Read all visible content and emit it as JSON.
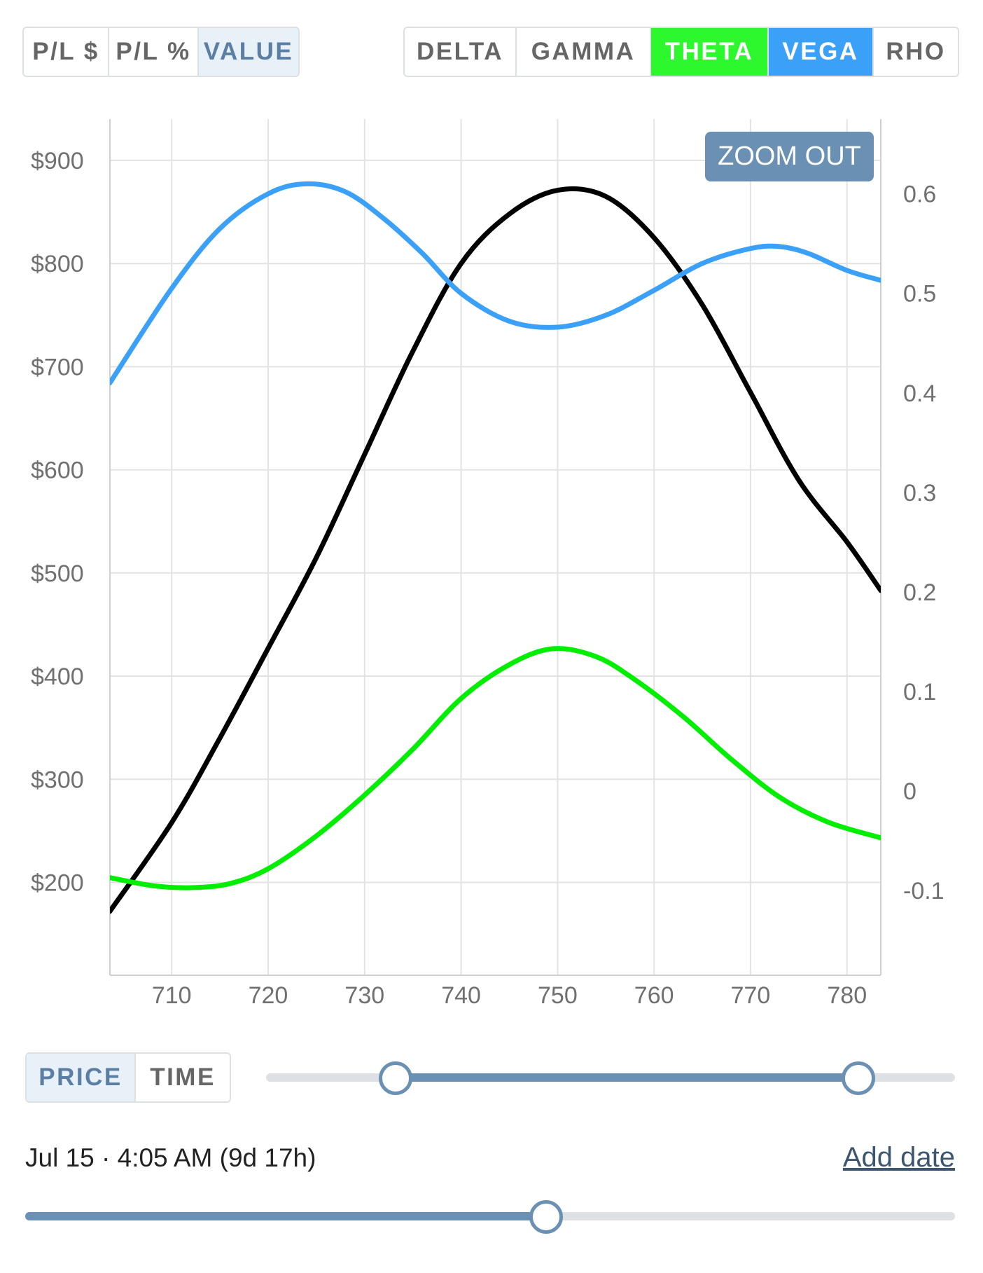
{
  "mode_tabs": [
    {
      "label": "P/L $",
      "active": false
    },
    {
      "label": "P/L %",
      "active": false
    },
    {
      "label": "VALUE",
      "active": true
    }
  ],
  "greek_tabs": [
    {
      "label": "DELTA",
      "active": false,
      "color": ""
    },
    {
      "label": "GAMMA",
      "active": false,
      "color": ""
    },
    {
      "label": "THETA",
      "active": true,
      "color": "#2df72d"
    },
    {
      "label": "VEGA",
      "active": true,
      "color": "#3aa0f8"
    },
    {
      "label": "RHO",
      "active": false,
      "color": ""
    }
  ],
  "zoom_label": "ZOOM OUT",
  "axis_tabs": [
    {
      "label": "PRICE",
      "active": true
    },
    {
      "label": "TIME",
      "active": false
    }
  ],
  "range_slider": {
    "low": 0.188,
    "high": 0.86
  },
  "date_label": "Jul 15 · 4:05 AM (9d 17h)",
  "add_date_label": "Add date",
  "time_slider": {
    "value": 0.56
  },
  "chart_data": {
    "type": "line",
    "x_ticks": [
      710,
      720,
      730,
      740,
      750,
      760,
      770,
      780
    ],
    "xlim": [
      703.6,
      783.5
    ],
    "y_left_ticks": [
      "$200",
      "$300",
      "$400",
      "$500",
      "$600",
      "$700",
      "$800",
      "$900"
    ],
    "y_left_values": [
      200,
      300,
      400,
      500,
      600,
      700,
      800,
      900
    ],
    "ylim_left": [
      110,
      940
    ],
    "y_right_ticks": [
      "-0.1",
      "0",
      "0.1",
      "0.2",
      "0.3",
      "0.4",
      "0.5",
      "0.6"
    ],
    "y_right_values": [
      -0.1,
      0,
      0.1,
      0.2,
      0.3,
      0.4,
      0.5,
      0.6
    ],
    "ylim_right": [
      -0.185,
      0.675
    ],
    "grid": true,
    "series": [
      {
        "color": "#000000",
        "axis": "left",
        "x": [
          703.6,
          710,
          715,
          720,
          725,
          730,
          735,
          740,
          745,
          750,
          755,
          760,
          765,
          770,
          775,
          780,
          783.5
        ],
        "y": [
          172,
          258,
          340,
          427,
          515,
          615,
          715,
          800,
          848,
          871,
          865,
          825,
          760,
          675,
          590,
          530,
          483
        ]
      },
      {
        "color": "#3aa0f8",
        "axis": "right",
        "x": [
          703.6,
          710,
          715,
          720,
          724,
          728,
          732,
          736,
          740,
          745,
          750,
          755,
          760,
          765,
          770,
          773,
          776,
          780,
          783.5
        ],
        "y": [
          0.41,
          0.505,
          0.565,
          0.6,
          0.61,
          0.602,
          0.575,
          0.54,
          0.5,
          0.472,
          0.466,
          0.478,
          0.503,
          0.53,
          0.545,
          0.547,
          0.54,
          0.523,
          0.513
        ]
      },
      {
        "color": "#00ee00",
        "axis": "right",
        "x": [
          703.6,
          708,
          712,
          716,
          720,
          725,
          730,
          735,
          740,
          745,
          749.5,
          754,
          758,
          763,
          768,
          773,
          778,
          783.5
        ],
        "y": [
          -0.087,
          -0.095,
          -0.097,
          -0.093,
          -0.078,
          -0.045,
          -0.004,
          0.042,
          0.093,
          0.127,
          0.143,
          0.135,
          0.112,
          0.075,
          0.032,
          -0.006,
          -0.031,
          -0.047
        ]
      }
    ]
  }
}
